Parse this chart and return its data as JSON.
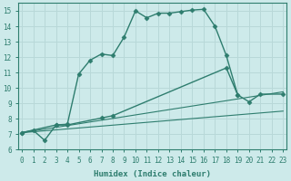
{
  "xlabel": "Humidex (Indice chaleur)",
  "bg_color": "#cdeaea",
  "grid_color": "#b8d8d8",
  "line_color": "#2e7d6e",
  "xlim": [
    0,
    23
  ],
  "ylim": [
    6,
    15.5
  ],
  "x_ticks": [
    0,
    1,
    2,
    3,
    4,
    5,
    6,
    7,
    8,
    9,
    10,
    11,
    12,
    13,
    14,
    15,
    16,
    17,
    18,
    19,
    20,
    21,
    22,
    23
  ],
  "y_ticks": [
    6,
    7,
    8,
    9,
    10,
    11,
    12,
    13,
    14,
    15
  ],
  "series": [
    {
      "x": [
        0,
        1,
        2,
        3,
        4,
        5,
        6,
        7,
        8,
        9,
        10,
        11,
        12,
        13,
        14,
        15,
        16,
        17,
        18,
        19
      ],
      "y": [
        7.1,
        7.25,
        6.6,
        7.6,
        7.65,
        10.9,
        11.8,
        12.2,
        12.1,
        13.3,
        15.0,
        14.55,
        14.85,
        14.85,
        14.95,
        15.05,
        15.1,
        14.0,
        12.1,
        9.55
      ],
      "marker": "D",
      "markersize": 2.5,
      "lw": 1.0
    },
    {
      "x": [
        0,
        3,
        4,
        7,
        8,
        18,
        19,
        20,
        21,
        23
      ],
      "y": [
        7.1,
        7.6,
        7.6,
        8.05,
        8.2,
        11.3,
        9.55,
        9.1,
        9.6,
        9.6
      ],
      "marker": "D",
      "markersize": 2.5,
      "lw": 1.0
    },
    {
      "x": [
        0,
        23
      ],
      "y": [
        7.1,
        9.75
      ],
      "marker": null,
      "markersize": 0,
      "lw": 0.8
    },
    {
      "x": [
        0,
        23
      ],
      "y": [
        7.1,
        8.5
      ],
      "marker": null,
      "markersize": 0,
      "lw": 0.8
    }
  ]
}
